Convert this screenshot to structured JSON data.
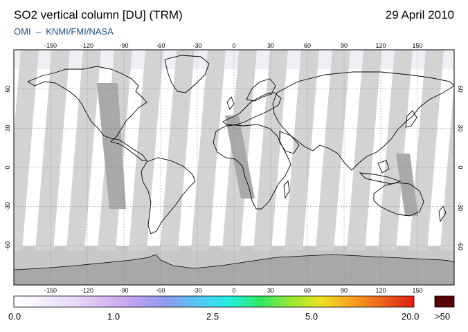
{
  "header": {
    "title": "SO2 vertical column [DU] (TRM)",
    "date": "29 April 2010",
    "source": "OMI  –  KNMI/FMI/NASA"
  },
  "map": {
    "lon_ticks_top": [
      "-150",
      "-120",
      "-90",
      "-60",
      "-30",
      "0",
      "30",
      "60",
      "90",
      "120",
      "150"
    ],
    "lon_ticks_bottom": [
      "-150",
      "-120",
      "-90",
      "-60",
      "-30",
      "0",
      "30",
      "60",
      "90",
      "120",
      "150"
    ],
    "lat_ticks_left": [
      "60",
      "30",
      "0",
      "-30",
      "-60"
    ],
    "lat_ticks_right": [
      "60",
      "30",
      "0",
      "-30",
      "-60"
    ],
    "colors": {
      "swath_light": "#d3d3d3",
      "swath_dark": "#a9a9a9",
      "polar_fill": "#c8c8c8",
      "antarctica": "#a8a8a8",
      "graticule": "#777777"
    }
  },
  "colorbar": {
    "labels": [
      "0.0",
      "1.0",
      "2.5",
      "5.0",
      "20.0",
      ">50"
    ],
    "max_color": "#5a0000",
    "gradient": [
      "#ffffff",
      "#f4eefc",
      "#e8d8fa",
      "#d8b8f0",
      "#b8a0f0",
      "#8a9af0",
      "#50c8f8",
      "#20f0e0",
      "#30e860",
      "#9ae830",
      "#f0e020",
      "#f8a020",
      "#f06020",
      "#e02010"
    ]
  }
}
